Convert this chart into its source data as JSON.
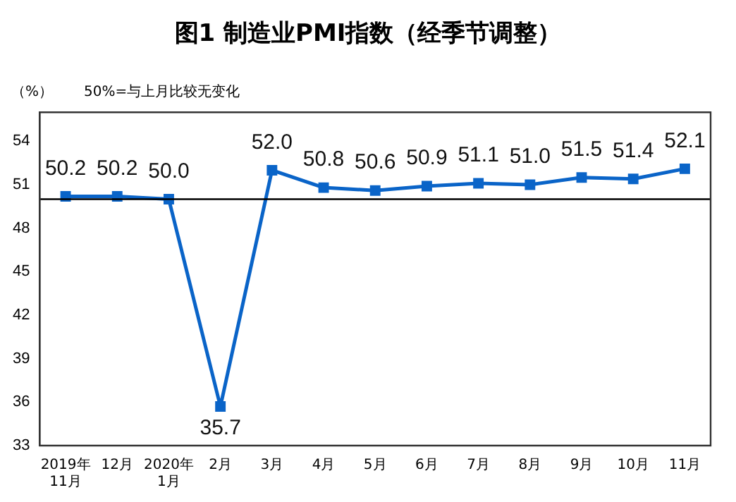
{
  "chart_data": {
    "type": "line",
    "title": "图1 制造业PMI指数（经季节调整）",
    "annotations": [
      "（%）",
      "50%=与上月比较无变化"
    ],
    "categories": [
      "2019年\n11月",
      "12月",
      "2020年\n1月",
      "2月",
      "3月",
      "4月",
      "5月",
      "6月",
      "7月",
      "8月",
      "9月",
      "10月",
      "11月"
    ],
    "series": [
      {
        "color": "#0a64c8",
        "values": [
          50.2,
          50.2,
          50.0,
          35.7,
          52.0,
          50.8,
          50.6,
          50.9,
          51.1,
          51.0,
          51.5,
          51.4,
          52.1
        ],
        "value_labels": [
          "50.2",
          "50.2",
          "50.0",
          "35.7",
          "52.0",
          "50.8",
          "50.6",
          "50.9",
          "51.1",
          "51.0",
          "51.5",
          "51.4",
          "52.1"
        ]
      }
    ],
    "ylim": [
      33,
      56
    ],
    "yticks": [
      33,
      36,
      39,
      42,
      45,
      48,
      51,
      54
    ],
    "ref_lines": [
      {
        "axis": "y",
        "value": 50,
        "color": "#000000"
      }
    ],
    "marker": "square",
    "line_style": "solid",
    "grid": false,
    "legend": false
  }
}
